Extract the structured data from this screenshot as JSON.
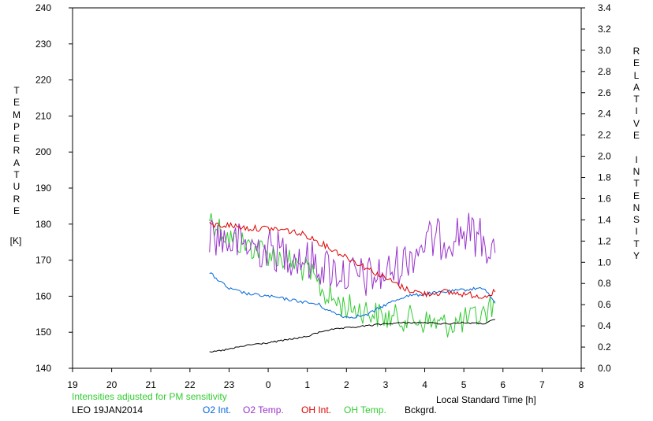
{
  "chart_data": {
    "type": "line",
    "title": "",
    "station": "LEO 19JAN2014",
    "note": "Intensities adjusted for PM sensitivity",
    "xlabel": "Local Standard Time [h]",
    "ylabel_left": "TEMPERATURE",
    "ylabel_left_unit": "[K]",
    "ylabel_right": "RELATIVE INTENSITY",
    "x_tick_labels": [
      "19",
      "20",
      "21",
      "22",
      "23",
      "0",
      "1",
      "2",
      "3",
      "4",
      "5",
      "6",
      "7",
      "8"
    ],
    "x_range_hours_since_19h": [
      0,
      13
    ],
    "ylim_left": [
      140,
      240
    ],
    "y_ticks_left": [
      140,
      150,
      160,
      170,
      180,
      190,
      200,
      210,
      220,
      230,
      240
    ],
    "ylim_right": [
      0.0,
      3.4
    ],
    "y_ticks_right": [
      "0.0",
      "0.2",
      "0.4",
      "0.6",
      "0.8",
      "1.0",
      "1.2",
      "1.4",
      "1.6",
      "1.8",
      "2.0",
      "2.2",
      "2.4",
      "2.6",
      "2.8",
      "3.0",
      "3.2",
      "3.4"
    ],
    "grid": false,
    "legend_placement": "bottom",
    "series": [
      {
        "name": "O2 Int.",
        "color": "#0066dd",
        "axis": "right",
        "x": [
          "22.5",
          "23",
          "23.5",
          "0",
          "0.5",
          "1",
          "1.3",
          "1.5",
          "2",
          "2.5",
          "3",
          "3.5",
          "4",
          "4.5",
          "5",
          "5.5",
          "5.8"
        ],
        "y": [
          0.9,
          0.75,
          0.7,
          0.68,
          0.65,
          0.62,
          0.6,
          0.55,
          0.48,
          0.5,
          0.6,
          0.68,
          0.7,
          0.72,
          0.74,
          0.76,
          0.62
        ]
      },
      {
        "name": "O2 Temp.",
        "color": "#9933cc",
        "axis": "left",
        "x": [
          "22.5",
          "23",
          "23.5",
          "0",
          "0.5",
          "1",
          "1.5",
          "2",
          "2.5",
          "3",
          "3.5",
          "4",
          "4.5",
          "5",
          "5.5",
          "5.8"
        ],
        "y": [
          178,
          175,
          174,
          173,
          172,
          170,
          168,
          166,
          165,
          166,
          170,
          175,
          176,
          178,
          176,
          172
        ]
      },
      {
        "name": "OH Int.",
        "color": "#dd0000",
        "axis": "right",
        "x": [
          "22.5",
          "23",
          "23.5",
          "0",
          "0.5",
          "1",
          "1.5",
          "2",
          "2.5",
          "3",
          "3.5",
          "4",
          "4.5",
          "5",
          "5.5",
          "5.8"
        ],
        "y": [
          1.35,
          1.35,
          1.32,
          1.32,
          1.3,
          1.25,
          1.15,
          1.05,
          0.95,
          0.85,
          0.75,
          0.7,
          0.72,
          0.7,
          0.68,
          0.72
        ]
      },
      {
        "name": "OH Temp.",
        "color": "#33cc33",
        "axis": "left",
        "x": [
          "22.5",
          "23",
          "23.5",
          "0",
          "0.5",
          "1",
          "1.5",
          "2",
          "2.5",
          "3",
          "3.5",
          "4",
          "4.5",
          "5",
          "5.5",
          "5.8"
        ],
        "y": [
          182,
          176,
          174,
          172,
          170,
          167,
          160,
          157,
          156,
          154,
          154,
          153,
          152,
          153,
          155,
          158
        ]
      },
      {
        "name": "Bckgrd.",
        "color": "#000000",
        "axis": "right",
        "x": [
          "22.5",
          "23",
          "23.5",
          "0",
          "0.5",
          "1",
          "1.3",
          "1.5",
          "2",
          "2.5",
          "3",
          "3.5",
          "4",
          "4.5",
          "5",
          "5.5",
          "5.8"
        ],
        "y": [
          0.15,
          0.18,
          0.22,
          0.24,
          0.27,
          0.3,
          0.34,
          0.36,
          0.38,
          0.4,
          0.42,
          0.43,
          0.43,
          0.42,
          0.43,
          0.42,
          0.46
        ]
      }
    ]
  }
}
